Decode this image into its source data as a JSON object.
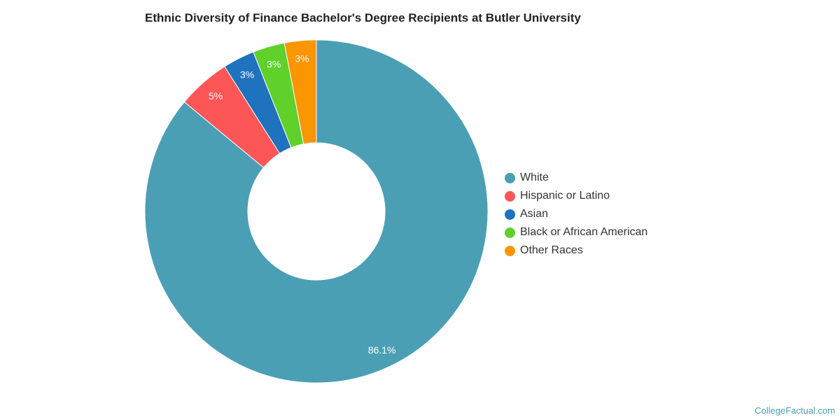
{
  "chart_data": {
    "type": "pie",
    "title": "Ethnic Diversity of Finance Bachelor's Degree Recipients at Butler University",
    "donut": true,
    "legend_position": "right",
    "slices": [
      {
        "name": "White",
        "value": 86.1,
        "label": "86.1%",
        "color": "#4a9fb5"
      },
      {
        "name": "Hispanic or Latino",
        "value": 5.0,
        "label": "5%",
        "color": "#fc5657"
      },
      {
        "name": "Asian",
        "value": 3.0,
        "label": "3%",
        "color": "#1f72bd"
      },
      {
        "name": "Black or African American",
        "value": 3.0,
        "label": "3%",
        "color": "#60d02b"
      },
      {
        "name": "Other Races",
        "value": 3.0,
        "label": "3%",
        "color": "#fb9500"
      }
    ]
  },
  "watermark": "CollegeFactual.com"
}
